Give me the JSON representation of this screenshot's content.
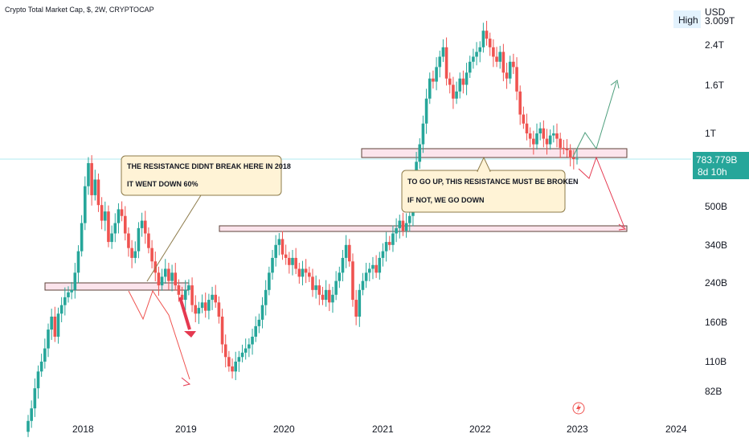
{
  "header": {
    "symbol_title": "Crypto Total Market Cap, $, 2W, CRYPTOCAP"
  },
  "price_axis": {
    "currency": "USD",
    "high_button": "High",
    "top_partial_label": "3.009T",
    "labels": [
      "2.4T",
      "1.6T",
      "1T",
      "500B",
      "340B",
      "240B",
      "160B",
      "110B",
      "82B"
    ]
  },
  "time_axis": {
    "labels": [
      "2018",
      "2019",
      "2020",
      "2021",
      "2022",
      "2023",
      "2024"
    ]
  },
  "last_price": {
    "value": "783.779B",
    "countdown": "8d 10h"
  },
  "annotations": {
    "note_2018": {
      "line1": "THE RESISTANCE DIDNT BREAK HERE IN 2018",
      "line2": "IT WENT DOWN 60%"
    },
    "note_2022": {
      "line1": "TO GO UP, THIS RESISTANCE MUST BE BROKEN",
      "line2": "IF NOT, WE GO DOWN"
    }
  },
  "colors": {
    "up": "#26a69a",
    "down": "#ef5350",
    "zone_fill": "#fce4ec",
    "zone_stroke": "#5d4037",
    "note_fill": "#fff3d6",
    "note_stroke": "#8d7b4a",
    "price_tag": "#26a69a",
    "arrow_up": "#4e9f7d",
    "arrow_down": "#e53950"
  },
  "chart_data": {
    "type": "candlestick",
    "title": "Crypto Total Market Cap, $, 2W, CRYPTOCAP",
    "x_range": [
      "2017-06",
      "2024-02"
    ],
    "y_scale": "log",
    "y_ticks": [
      "2.4T",
      "1.6T",
      "1T",
      "500B",
      "340B",
      "240B",
      "160B",
      "110B",
      "82B"
    ],
    "x_ticks": [
      "2018",
      "2019",
      "2020",
      "2021",
      "2022",
      "2023",
      "2024"
    ],
    "last_value_billion": 783.779,
    "series": [
      {
        "name": "",
        "closes_billion": [
          62,
          70,
          85,
          100,
          110,
          125,
          150,
          170,
          140,
          175,
          190,
          205,
          215,
          220,
          260,
          320,
          420,
          600,
          750,
          550,
          640,
          500,
          430,
          470,
          350,
          380,
          420,
          480,
          450,
          380,
          330,
          300,
          320,
          400,
          430,
          380,
          330,
          290,
          260,
          230,
          250,
          270,
          240,
          260,
          230,
          210,
          200,
          220,
          230,
          190,
          175,
          185,
          195,
          180,
          200,
          210,
          195,
          170,
          130,
          115,
          105,
          100,
          110,
          115,
          120,
          125,
          130,
          140,
          155,
          165,
          190,
          220,
          260,
          300,
          340,
          360,
          310,
          300,
          280,
          300,
          270,
          250,
          270,
          260,
          250,
          220,
          230,
          210,
          200,
          220,
          195,
          210,
          240,
          260,
          300,
          340,
          290,
          200,
          170,
          220,
          240,
          260,
          270,
          280,
          260,
          300,
          320,
          350,
          340,
          380,
          400,
          430,
          390,
          420,
          450,
          560,
          760,
          900,
          1100,
          1400,
          1700,
          1650,
          1900,
          2100,
          2300,
          1700,
          1600,
          1400,
          1500,
          1700,
          1600,
          1800,
          2000,
          2100,
          2200,
          2300,
          2700,
          2500,
          2300,
          2100,
          2000,
          2200,
          1800,
          1700,
          2000,
          1900,
          1500,
          1200,
          1100,
          1000,
          950,
          900,
          1000,
          1050,
          950,
          900,
          980,
          1000,
          950,
          870,
          860,
          850,
          790,
          780,
          784
        ],
        "support_zone_billion": [
          835,
          1000
        ],
        "lower_zone_billion": [
          365,
          385
        ],
        "zone_2018_billion": [
          212,
          230
        ]
      }
    ]
  }
}
